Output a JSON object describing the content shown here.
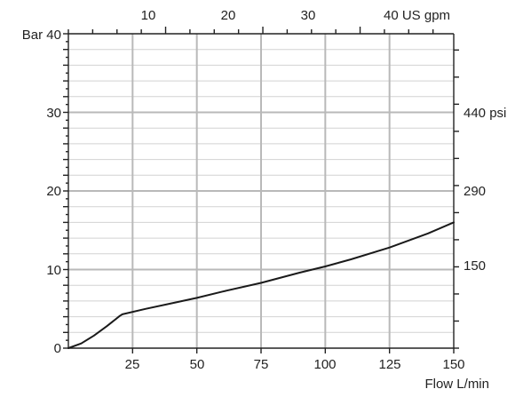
{
  "chart_data": {
    "type": "line",
    "title": "",
    "x_bottom": {
      "ticks": [
        25,
        50,
        75,
        100,
        125,
        150
      ],
      "tick_labels": [
        "25",
        "50",
        "75",
        "100",
        "125",
        "150"
      ],
      "label": "Flow L/min",
      "range": [
        0,
        150
      ]
    },
    "x_top": {
      "ticks": [
        10,
        20,
        30,
        40
      ],
      "tick_labels": [
        "10",
        "20",
        "30",
        "40 US gpm"
      ],
      "unit": "US gpm"
    },
    "y_left": {
      "ticks": [
        0,
        10,
        20,
        30,
        40
      ],
      "tick_labels": [
        "0",
        "10",
        "20",
        "30",
        "Bar 40"
      ],
      "unit": "Bar",
      "range": [
        0,
        40
      ]
    },
    "y_right": {
      "tick_labels": [
        "150",
        "290",
        "440 psi"
      ],
      "unit": "psi"
    },
    "grid": true,
    "series": [
      {
        "x": [
          0,
          5,
          10,
          15,
          20,
          21,
          30,
          40,
          50,
          60,
          75,
          90,
          100,
          110,
          125,
          140,
          150
        ],
        "y": [
          0,
          0.6,
          1.6,
          2.8,
          4.1,
          4.3,
          5.0,
          5.7,
          6.4,
          7.2,
          8.3,
          9.6,
          10.4,
          11.3,
          12.8,
          14.6,
          16.0
        ]
      }
    ]
  }
}
